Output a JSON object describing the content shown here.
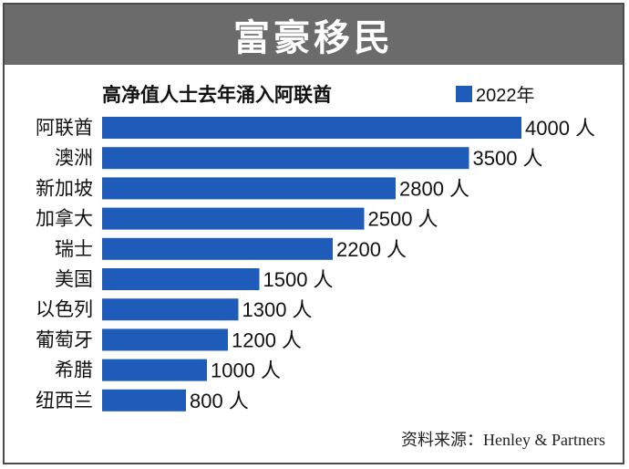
{
  "title": "富豪移民",
  "chart_data": {
    "type": "bar",
    "orientation": "horizontal",
    "title": "高净值人士去年涌入阿联酋",
    "categories": [
      "阿联酋",
      "澳洲",
      "新加坡",
      "加拿大",
      "瑞士",
      "美国",
      "以色列",
      "葡萄牙",
      "希腊",
      "纽西兰"
    ],
    "series": [
      {
        "name": "2022年",
        "values": [
          4000,
          3500,
          2800,
          2500,
          2200,
          1500,
          1300,
          1200,
          1000,
          800
        ]
      }
    ],
    "value_labels": [
      "4000 人",
      "3500 人",
      "2800 人",
      "2500 人",
      "2200 人",
      "1500 人",
      "1300 人",
      "1200 人",
      "1000 人",
      "800 人"
    ],
    "xlim": [
      0,
      4000
    ],
    "grid": false,
    "legend_position": "top-right",
    "bar_color": "#1f5bb8"
  },
  "source": "资料来源：Henley & Partners"
}
